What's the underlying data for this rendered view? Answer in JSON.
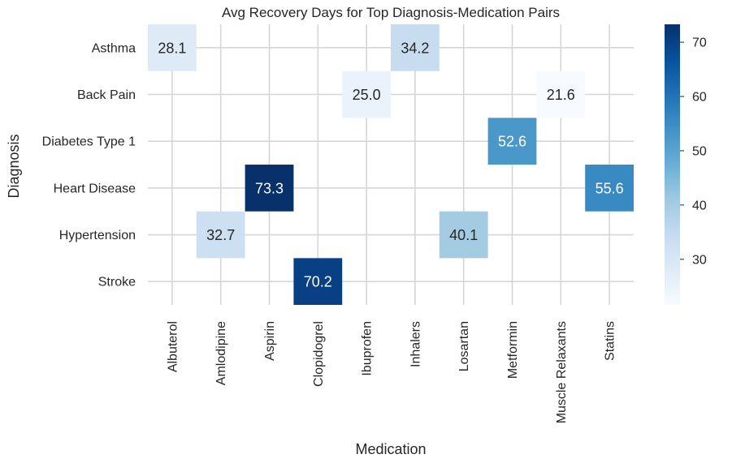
{
  "chart_data": {
    "type": "heatmap",
    "title": "Avg Recovery Days for Top Diagnosis-Medication Pairs",
    "xlabel": "Medication",
    "ylabel": "Diagnosis",
    "x_categories": [
      "Albuterol",
      "Amlodipine",
      "Aspirin",
      "Clopidogrel",
      "Ibuprofen",
      "Inhalers",
      "Losartan",
      "Metformin",
      "Muscle Relaxants",
      "Statins"
    ],
    "y_categories": [
      "Asthma",
      "Back Pain",
      "Diabetes Type 1",
      "Heart Disease",
      "Hypertension",
      "Stroke"
    ],
    "cells": [
      {
        "y": "Asthma",
        "x": "Albuterol",
        "value": 28.1,
        "label": "28.1"
      },
      {
        "y": "Asthma",
        "x": "Inhalers",
        "value": 34.2,
        "label": "34.2"
      },
      {
        "y": "Back Pain",
        "x": "Ibuprofen",
        "value": 25.0,
        "label": "25.0"
      },
      {
        "y": "Back Pain",
        "x": "Muscle Relaxants",
        "value": 21.6,
        "label": "21.6"
      },
      {
        "y": "Diabetes Type 1",
        "x": "Metformin",
        "value": 52.6,
        "label": "52.6"
      },
      {
        "y": "Heart Disease",
        "x": "Aspirin",
        "value": 73.3,
        "label": "73.3"
      },
      {
        "y": "Heart Disease",
        "x": "Statins",
        "value": 55.6,
        "label": "55.6"
      },
      {
        "y": "Hypertension",
        "x": "Amlodipine",
        "value": 32.7,
        "label": "32.7"
      },
      {
        "y": "Hypertension",
        "x": "Losartan",
        "value": 40.1,
        "label": "40.1"
      },
      {
        "y": "Stroke",
        "x": "Clopidogrel",
        "value": 70.2,
        "label": "70.2"
      }
    ],
    "colormap": "Blues",
    "color_range": [
      21.6,
      73.3
    ],
    "colorbar_ticks": [
      "30",
      "40",
      "50",
      "60",
      "70"
    ],
    "grid": true
  }
}
